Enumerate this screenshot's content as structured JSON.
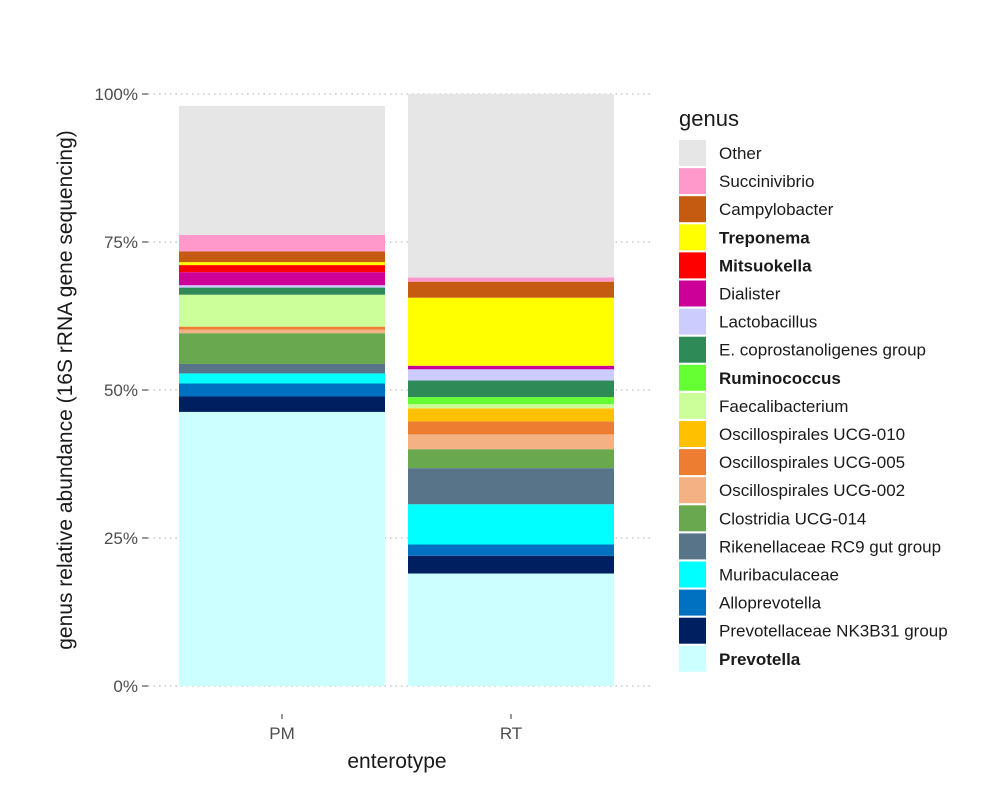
{
  "chart_data": {
    "type": "bar",
    "stacked": true,
    "xlabel": "enterotype",
    "ylabel": "genus relative abundance (16S rRNA gene sequencing)",
    "categories": [
      "PM",
      "RT"
    ],
    "ylim": [
      0,
      100
    ],
    "yticks": [
      "0%",
      "25%",
      "50%",
      "75%",
      "100%"
    ],
    "grid": "dotted horizontal at ticks",
    "legend": {
      "title": "genus",
      "position": "right"
    },
    "series": [
      {
        "name": "Prevotella",
        "color": "#CCFFFF",
        "bold": true,
        "values": [
          46.3,
          19.0
        ]
      },
      {
        "name": "Prevotellaceae NK3B31 group",
        "color": "#001F60",
        "bold": false,
        "values": [
          2.6,
          3.0
        ]
      },
      {
        "name": "Alloprevotella",
        "color": "#0070C0",
        "bold": false,
        "values": [
          2.2,
          1.9
        ]
      },
      {
        "name": "Muribaculaceae",
        "color": "#00FFFF",
        "bold": false,
        "values": [
          1.7,
          6.8
        ]
      },
      {
        "name": "Rikenellaceae RC9 gut group",
        "color": "#587489",
        "bold": false,
        "values": [
          1.6,
          6.1
        ]
      },
      {
        "name": "Clostridia UCG-014",
        "color": "#6AA84F",
        "bold": false,
        "values": [
          5.2,
          3.2
        ]
      },
      {
        "name": "Oscillospirales UCG-002",
        "color": "#F4B183",
        "bold": false,
        "values": [
          0.6,
          2.5
        ]
      },
      {
        "name": "Oscillospirales UCG-005",
        "color": "#ED7D31",
        "bold": false,
        "values": [
          0.5,
          2.2
        ]
      },
      {
        "name": "Oscillospirales UCG-010",
        "color": "#FFC000",
        "bold": false,
        "values": [
          0.0,
          2.2
        ]
      },
      {
        "name": "Faecalibacterium",
        "color": "#CCFF99",
        "bold": false,
        "values": [
          5.4,
          0.7
        ]
      },
      {
        "name": "Ruminococcus",
        "color": "#66FF33",
        "bold": true,
        "values": [
          0.0,
          1.2
        ]
      },
      {
        "name": "E. coprostanoligenes group",
        "color": "#2E8B57",
        "bold": false,
        "values": [
          1.2,
          2.8
        ]
      },
      {
        "name": "Lactobacillus",
        "color": "#CCCCFF",
        "bold": false,
        "values": [
          0.4,
          1.9
        ]
      },
      {
        "name": "Dialister",
        "color": "#CC0099",
        "bold": false,
        "values": [
          2.2,
          0.6
        ]
      },
      {
        "name": "Mitsuokella",
        "color": "#FF0000",
        "bold": true,
        "values": [
          1.2,
          0.0
        ]
      },
      {
        "name": "Treponema",
        "color": "#FFFF00",
        "bold": true,
        "values": [
          0.5,
          11.5
        ]
      },
      {
        "name": "Campylobacter",
        "color": "#C55A11",
        "bold": false,
        "values": [
          1.8,
          2.7
        ]
      },
      {
        "name": "Succinivibrio",
        "color": "#FF99CC",
        "bold": false,
        "values": [
          2.8,
          0.7
        ]
      },
      {
        "name": "Other",
        "color": "#E6E6E6",
        "bold": false,
        "values": [
          21.8,
          31.0
        ]
      }
    ]
  }
}
